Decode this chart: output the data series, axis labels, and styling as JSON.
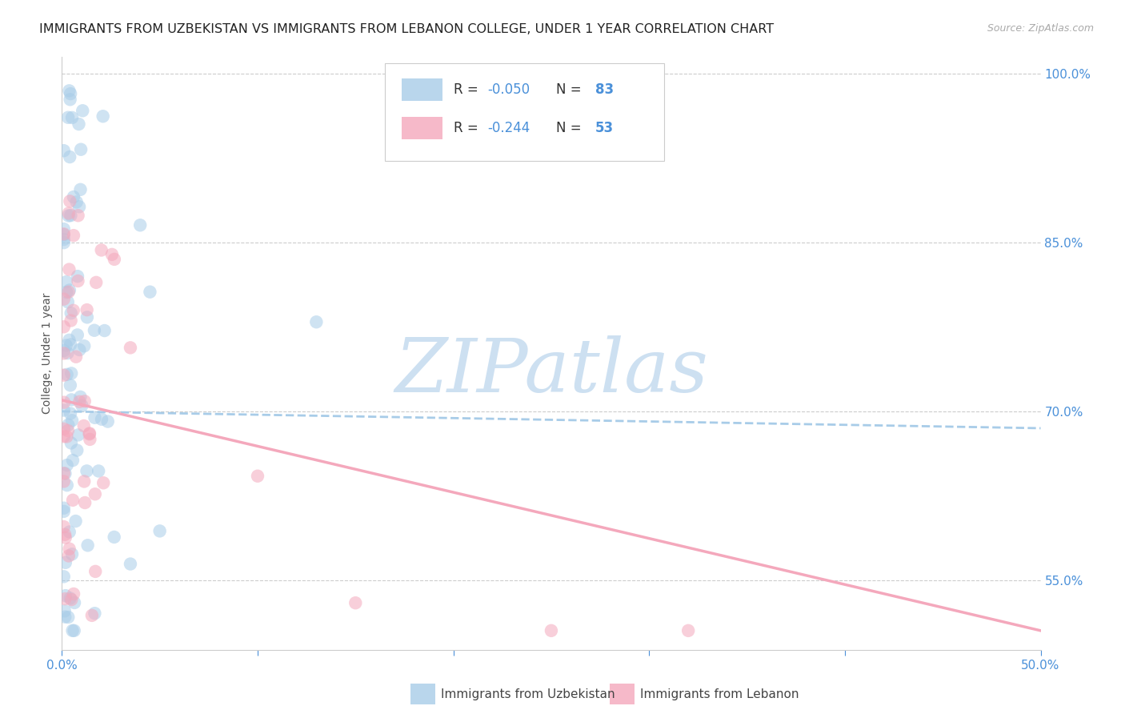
{
  "title": "IMMIGRANTS FROM UZBEKISTAN VS IMMIGRANTS FROM LEBANON COLLEGE, UNDER 1 YEAR CORRELATION CHART",
  "source": "Source: ZipAtlas.com",
  "ylabel": "College, Under 1 year",
  "legend_label1": "Immigrants from Uzbekistan",
  "legend_label2": "Immigrants from Lebanon",
  "r1": -0.05,
  "n1": 83,
  "r2": -0.244,
  "n2": 53,
  "color1": "#a8cce8",
  "color2": "#f4a8bc",
  "axis_color": "#4a90d9",
  "text_color": "#333333",
  "xmin": 0.0,
  "xmax": 0.5,
  "ymin": 0.488,
  "ymax": 1.015,
  "right_yticks": [
    1.0,
    0.85,
    0.7,
    0.55
  ],
  "right_ytick_labels": [
    "100.0%",
    "85.0%",
    "70.0%",
    "55.0%"
  ],
  "bottom_xticks": [
    0.0,
    0.1,
    0.2,
    0.3,
    0.4,
    0.5
  ],
  "bottom_xtick_labels": [
    "0.0%",
    "",
    "",
    "",
    "",
    "50.0%"
  ],
  "watermark_text": "ZIPatlas",
  "watermark_color": "#c8ddf0",
  "background_color": "#ffffff",
  "grid_color": "#cccccc",
  "title_fontsize": 11.5,
  "source_fontsize": 9,
  "tick_fontsize": 11,
  "ylabel_fontsize": 10,
  "legend_fontsize": 12,
  "scatter_size": 140,
  "scatter_alpha": 0.55
}
